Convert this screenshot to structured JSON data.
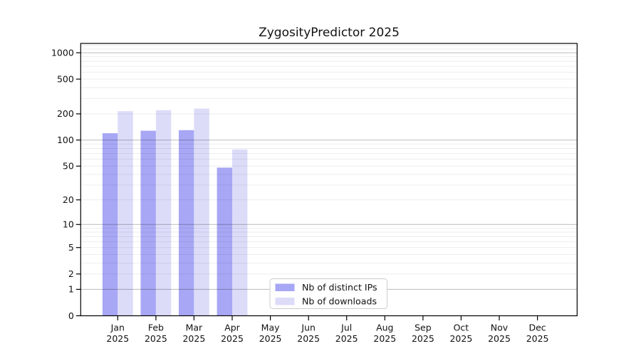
{
  "chart_data": {
    "type": "bar",
    "title": "ZygosityPredictor 2025",
    "x_categories": [
      "Jan",
      "Feb",
      "Mar",
      "Apr",
      "May",
      "Jun",
      "Jul",
      "Aug",
      "Sep",
      "Oct",
      "Nov",
      "Dec"
    ],
    "x_year_suffix": "2025",
    "series": [
      {
        "name": "Nb of distinct IPs",
        "color": "#a7a7f5",
        "values": [
          120,
          128,
          130,
          48,
          0,
          0,
          0,
          0,
          0,
          0,
          0,
          0
        ]
      },
      {
        "name": "Nb of downloads",
        "color": "#dcdcf9",
        "values": [
          215,
          220,
          230,
          78,
          0,
          0,
          0,
          0,
          0,
          0,
          0,
          0
        ]
      }
    ],
    "yscale": "log1p",
    "yticks": [
      0,
      1,
      2,
      5,
      10,
      20,
      50,
      100,
      200,
      500,
      1000
    ],
    "ylim": [
      0,
      1277
    ],
    "grid": {
      "major_values": [
        1,
        10,
        100,
        1000
      ],
      "minor_per_decade": [
        2,
        3,
        4,
        5,
        6,
        7,
        8,
        9
      ],
      "major_color": "rgba(0,0,0,0.27)",
      "minor_color": "rgba(0,0,0,0.08)"
    },
    "legend": {
      "labels": [
        "Nb of distinct IPs",
        "Nb of downloads"
      ],
      "position": "lower-center-left"
    },
    "axis_color": "#000000",
    "background": "#ffffff"
  }
}
